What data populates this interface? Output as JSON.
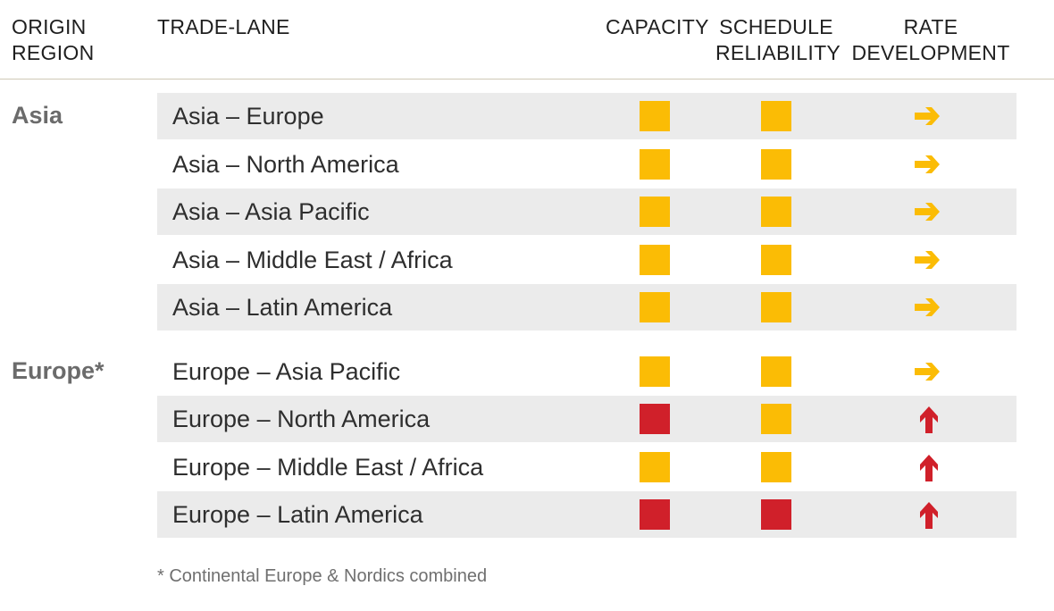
{
  "headers": {
    "origin": [
      "ORIGIN",
      "REGION"
    ],
    "lane": "TRADE-LANE",
    "capacity": "CAPACITY",
    "reliability": [
      "SCHEDULE",
      "RELIABILITY"
    ],
    "rate": [
      "RATE",
      "DEVELOPMENT"
    ]
  },
  "regions": {
    "asia": "Asia",
    "europe": "Europe*"
  },
  "colors": {
    "amber": "#fbbc05",
    "red": "#d0202a"
  },
  "rows": [
    {
      "lane": "Asia – Europe",
      "capacity": "amber",
      "reliability": "amber",
      "rate_icon": "arrow-right-icon"
    },
    {
      "lane": "Asia – North America",
      "capacity": "amber",
      "reliability": "amber",
      "rate_icon": "arrow-right-icon"
    },
    {
      "lane": "Asia – Asia Pacific",
      "capacity": "amber",
      "reliability": "amber",
      "rate_icon": "arrow-right-icon"
    },
    {
      "lane": "Asia – Middle East / Africa",
      "capacity": "amber",
      "reliability": "amber",
      "rate_icon": "arrow-right-icon"
    },
    {
      "lane": "Asia – Latin America",
      "capacity": "amber",
      "reliability": "amber",
      "rate_icon": "arrow-right-icon"
    },
    {
      "lane": "Europe – Asia Pacific",
      "capacity": "amber",
      "reliability": "amber",
      "rate_icon": "arrow-right-icon"
    },
    {
      "lane": "Europe – North America",
      "capacity": "red",
      "reliability": "amber",
      "rate_icon": "arrow-up-icon"
    },
    {
      "lane": "Europe – Middle East / Africa",
      "capacity": "amber",
      "reliability": "amber",
      "rate_icon": "arrow-up-icon"
    },
    {
      "lane": "Europe – Latin America",
      "capacity": "red",
      "reliability": "red",
      "rate_icon": "arrow-up-icon"
    }
  ],
  "footnote": "* Continental Europe & Nordics combined"
}
